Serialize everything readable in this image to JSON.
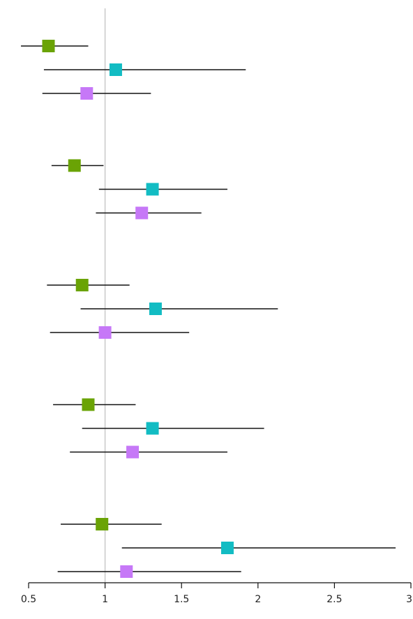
{
  "chart_data": {
    "type": "scatter",
    "title": "",
    "xlabel": "",
    "ylabel": "",
    "xlim": [
      0.5,
      3
    ],
    "reference_line": 1,
    "grid": false,
    "legend": "none",
    "x_ticks": [
      {
        "value": 0.5,
        "label": "0.5"
      },
      {
        "value": 1,
        "label": "1"
      },
      {
        "value": 1.5,
        "label": "1.5"
      },
      {
        "value": 2,
        "label": "2"
      },
      {
        "value": 2.5,
        "label": "2.5"
      },
      {
        "value": 3,
        "label": "3"
      }
    ],
    "series_colors": [
      "#6aa305",
      "#12bcc3",
      "#c678f7"
    ],
    "groups": [
      {
        "estimates": [
          {
            "series": 0,
            "value": 0.63,
            "low": 0.45,
            "high": 0.89
          },
          {
            "series": 1,
            "value": 1.07,
            "low": 0.6,
            "high": 1.92
          },
          {
            "series": 2,
            "value": 0.88,
            "low": 0.59,
            "high": 1.3
          }
        ]
      },
      {
        "estimates": [
          {
            "series": 0,
            "value": 0.8,
            "low": 0.65,
            "high": 0.99
          },
          {
            "series": 1,
            "value": 1.31,
            "low": 0.96,
            "high": 1.8
          },
          {
            "series": 2,
            "value": 1.24,
            "low": 0.94,
            "high": 1.63
          }
        ]
      },
      {
        "estimates": [
          {
            "series": 0,
            "value": 0.85,
            "low": 0.62,
            "high": 1.16
          },
          {
            "series": 1,
            "value": 1.33,
            "low": 0.84,
            "high": 2.13
          },
          {
            "series": 2,
            "value": 1.0,
            "low": 0.64,
            "high": 1.55
          }
        ]
      },
      {
        "estimates": [
          {
            "series": 0,
            "value": 0.89,
            "low": 0.66,
            "high": 1.2
          },
          {
            "series": 1,
            "value": 1.31,
            "low": 0.85,
            "high": 2.04
          },
          {
            "series": 2,
            "value": 1.18,
            "low": 0.77,
            "high": 1.8
          }
        ]
      },
      {
        "estimates": [
          {
            "series": 0,
            "value": 0.98,
            "low": 0.71,
            "high": 1.37
          },
          {
            "series": 1,
            "value": 1.8,
            "low": 1.11,
            "high": 2.9
          },
          {
            "series": 2,
            "value": 1.14,
            "low": 0.69,
            "high": 1.89
          }
        ]
      }
    ]
  }
}
